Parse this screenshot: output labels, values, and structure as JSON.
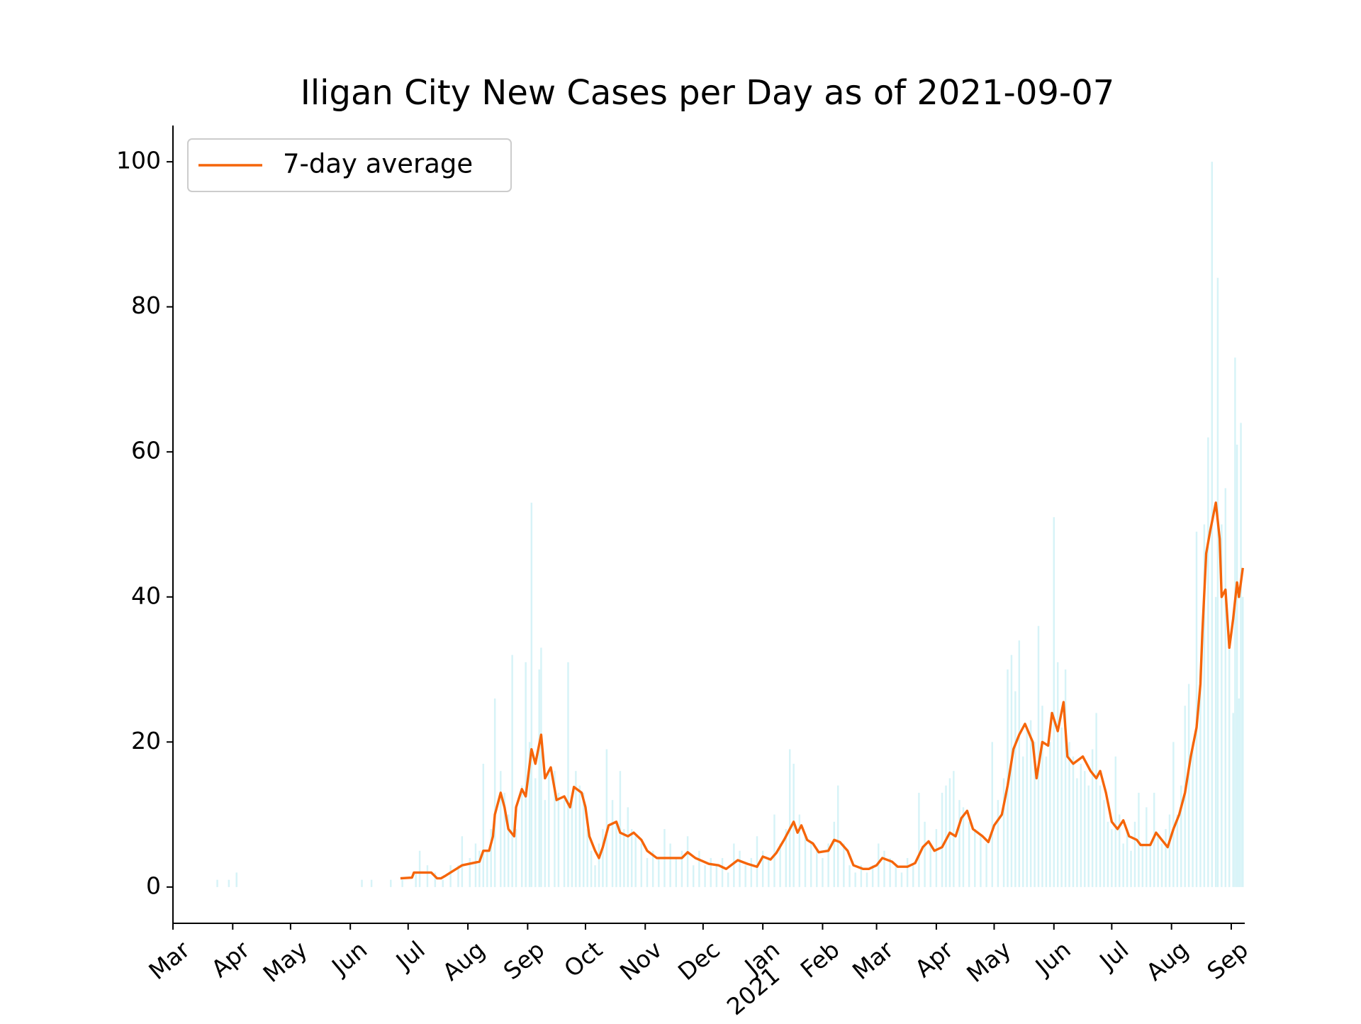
{
  "chart_data": {
    "type": "combo",
    "title": "Iligan City New Cases per Day as of 2021-09-07",
    "xlim": [
      0,
      556
    ],
    "ylim": [
      -5,
      105
    ],
    "xticks": [
      {
        "value": 0,
        "label": "Mar"
      },
      {
        "value": 31,
        "label": "Apr"
      },
      {
        "value": 61,
        "label": "May"
      },
      {
        "value": 92,
        "label": "Jun"
      },
      {
        "value": 122,
        "label": "Jul"
      },
      {
        "value": 153,
        "label": "Aug"
      },
      {
        "value": 184,
        "label": "Sep"
      },
      {
        "value": 214,
        "label": "Oct"
      },
      {
        "value": 245,
        "label": "Nov"
      },
      {
        "value": 275,
        "label": "Dec"
      },
      {
        "value": 306,
        "label": "Jan"
      },
      {
        "value": 337,
        "label": "Feb"
      },
      {
        "value": 365,
        "label": "Mar"
      },
      {
        "value": 396,
        "label": "Apr"
      },
      {
        "value": 426,
        "label": "May"
      },
      {
        "value": 457,
        "label": "Jun"
      },
      {
        "value": 487,
        "label": "Jul"
      },
      {
        "value": 518,
        "label": "Aug"
      },
      {
        "value": 549,
        "label": "Sep"
      }
    ],
    "xtick_year_label": "2021",
    "yticks": [
      0,
      20,
      40,
      60,
      80,
      100
    ],
    "legend": "upper left",
    "series": [
      {
        "type": "bar",
        "color": "#d6f3f7",
        "x": [
          23,
          29,
          33,
          98,
          103,
          113,
          119,
          126,
          128,
          132,
          136,
          140,
          144,
          148,
          150,
          154,
          157,
          159,
          161,
          163,
          165,
          167,
          170,
          172,
          174,
          176,
          178,
          181,
          183,
          185,
          186,
          188,
          190,
          191,
          193,
          195,
          198,
          200,
          203,
          205,
          207,
          209,
          211,
          213,
          215,
          217,
          219,
          221,
          223,
          225,
          228,
          230,
          232,
          234,
          236,
          238,
          240,
          243,
          246,
          249,
          252,
          255,
          258,
          261,
          264,
          267,
          270,
          273,
          276,
          279,
          282,
          285,
          288,
          291,
          294,
          297,
          300,
          303,
          306,
          309,
          312,
          315,
          318,
          320,
          322,
          325,
          328,
          331,
          334,
          337,
          340,
          343,
          345,
          348,
          351,
          354,
          357,
          360,
          363,
          366,
          369,
          372,
          375,
          378,
          381,
          384,
          387,
          390,
          393,
          396,
          399,
          401,
          403,
          405,
          408,
          410,
          413,
          416,
          419,
          422,
          425,
          428,
          431,
          433,
          435,
          437,
          439,
          441,
          443,
          445,
          447,
          449,
          451,
          453,
          455,
          457,
          459,
          461,
          463,
          465,
          467,
          469,
          471,
          473,
          475,
          477,
          479,
          481,
          483,
          485,
          487,
          489,
          491,
          493,
          495,
          497,
          499,
          501,
          503,
          505,
          507,
          509,
          511,
          513,
          515,
          517,
          519,
          521,
          523,
          525,
          527,
          529,
          531,
          533,
          535,
          537,
          539,
          541,
          542,
          544,
          546,
          548,
          550,
          551,
          552,
          553,
          554,
          555
        ],
        "values": [
          1,
          1,
          2,
          1,
          1,
          1,
          1,
          2,
          5,
          3,
          2,
          1,
          3,
          3,
          7,
          4,
          6,
          5,
          17,
          5,
          8,
          26,
          16,
          13,
          10,
          32,
          8,
          14,
          31,
          20,
          53,
          15,
          30,
          33,
          12,
          16,
          16,
          13,
          12,
          31,
          12,
          16,
          14,
          13,
          8,
          5,
          3,
          6,
          8,
          19,
          12,
          9,
          16,
          8,
          11,
          8,
          7,
          6,
          4,
          5,
          4,
          8,
          6,
          4,
          5,
          7,
          3,
          5,
          3,
          4,
          3,
          4,
          2,
          6,
          5,
          3,
          4,
          7,
          5,
          4,
          10,
          6,
          8,
          19,
          17,
          10,
          7,
          6,
          5,
          4,
          6,
          9,
          14,
          6,
          3,
          2,
          3,
          2,
          3,
          6,
          5,
          4,
          3,
          2,
          4,
          3,
          13,
          9,
          6,
          8,
          13,
          14,
          15,
          16,
          12,
          11,
          9,
          8,
          7,
          6,
          20,
          12,
          15,
          30,
          32,
          27,
          34,
          18,
          22,
          23,
          20,
          36,
          25,
          18,
          20,
          51,
          31,
          22,
          30,
          20,
          18,
          15,
          17,
          16,
          14,
          19,
          24,
          14,
          12,
          9,
          8,
          18,
          10,
          6,
          8,
          5,
          9,
          13,
          6,
          11,
          6,
          13,
          7,
          6,
          8,
          10,
          20,
          10,
          14,
          25,
          28,
          20,
          49,
          30,
          50,
          62,
          100,
          40,
          84,
          50,
          55,
          33,
          24,
          73,
          61,
          26,
          64,
          40
        ]
      },
      {
        "type": "line",
        "name": "7-day average",
        "color": "#f5650a",
        "x": [
          118,
          124,
          125,
          134,
          137,
          139,
          141,
          150,
          159,
          161,
          164,
          166,
          167,
          170,
          172,
          174,
          177,
          178,
          181,
          183,
          186,
          188,
          191,
          193,
          196,
          199,
          203,
          206,
          208,
          212,
          214,
          216,
          219,
          221,
          223,
          226,
          230,
          232,
          236,
          239,
          243,
          246,
          251,
          258,
          264,
          267,
          271,
          278,
          283,
          287,
          293,
          298,
          303,
          306,
          310,
          313,
          317,
          322,
          324,
          326,
          329,
          332,
          335,
          340,
          343,
          346,
          350,
          353,
          358,
          361,
          365,
          368,
          373,
          376,
          381,
          385,
          389,
          392,
          395,
          399,
          403,
          406,
          409,
          412,
          415,
          420,
          423,
          426,
          430,
          433,
          436,
          439,
          442,
          446,
          448,
          451,
          454,
          456,
          459,
          462,
          464,
          467,
          472,
          476,
          479,
          481,
          484,
          487,
          490,
          493,
          496,
          500,
          502,
          507,
          510,
          513,
          516,
          519,
          522,
          525,
          528,
          531,
          533,
          534,
          536,
          538,
          541,
          543,
          544,
          546,
          548,
          550,
          552,
          553,
          555
        ],
        "values": [
          1.2,
          1.3,
          2,
          2,
          1.2,
          1.2,
          1.5,
          3,
          3.5,
          5,
          5,
          7,
          10,
          13,
          11,
          8,
          7,
          11,
          13.5,
          12.5,
          19,
          17,
          21,
          15,
          16.5,
          12,
          12.5,
          11,
          13.8,
          13,
          11,
          7,
          5,
          4,
          5.5,
          8.5,
          9,
          7.5,
          7,
          7.5,
          6.5,
          5,
          4,
          4,
          4,
          4.8,
          4,
          3.2,
          3,
          2.5,
          3.7,
          3.2,
          2.8,
          4.2,
          3.8,
          4.7,
          6.5,
          9,
          7.5,
          8.5,
          6.5,
          6,
          4.8,
          5,
          6.5,
          6.2,
          5,
          3,
          2.5,
          2.5,
          3,
          4,
          3.5,
          2.8,
          2.8,
          3.3,
          5.5,
          6.3,
          5,
          5.5,
          7.5,
          7,
          9.5,
          10.5,
          8,
          7,
          6.2,
          8.5,
          10,
          14,
          19,
          21,
          22.5,
          20,
          15,
          20,
          19.5,
          24,
          21.5,
          25.5,
          18,
          17,
          18,
          16,
          15,
          16,
          13,
          9,
          8,
          9.2,
          7,
          6.5,
          5.8,
          5.8,
          7.5,
          6.5,
          5.5,
          8,
          10,
          13,
          18,
          22,
          28,
          35,
          46,
          49,
          53,
          48,
          40,
          41,
          33,
          37,
          42,
          40,
          44
        ]
      }
    ]
  }
}
